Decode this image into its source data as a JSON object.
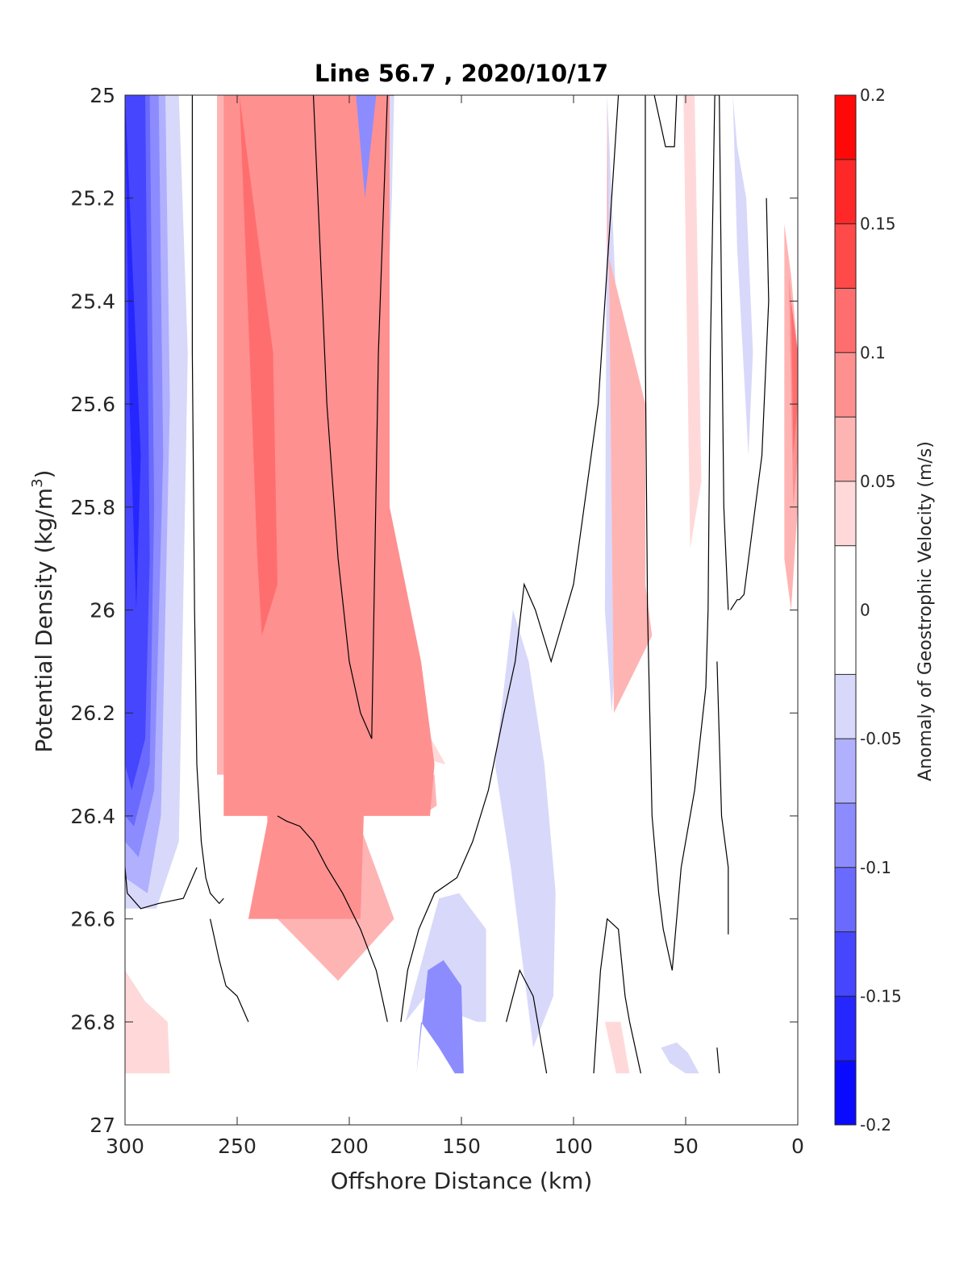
{
  "chart_data": {
    "type": "contour",
    "title": "Line 56.7 , 2020/10/17",
    "xlabel": "Offshore Distance (km)",
    "ylabel_main": "Potential Density (kg/m",
    "ylabel_sup": "3",
    "ylabel_close": ")",
    "x_reversed": true,
    "y_reversed": true,
    "xlim": [
      0,
      300
    ],
    "ylim": [
      25,
      27
    ],
    "x_ticks": [
      300,
      250,
      200,
      150,
      100,
      50,
      0
    ],
    "x_tick_labels": [
      "300",
      "250",
      "200",
      "150",
      "100",
      "50",
      "0"
    ],
    "y_ticks": [
      25,
      25.2,
      25.4,
      25.6,
      25.8,
      26,
      26.2,
      26.4,
      26.6,
      26.8,
      27
    ],
    "y_tick_labels": [
      "25",
      "25.2",
      "25.4",
      "25.6",
      "25.8",
      "26",
      "26.2",
      "26.4",
      "26.6",
      "26.8",
      "27"
    ],
    "colorbar": {
      "label": "Anomaly of Geostrophic Velocity (m/s)",
      "range": [
        -0.2,
        0.2
      ],
      "levels": [
        -0.2,
        -0.175,
        -0.15,
        -0.125,
        -0.1,
        -0.075,
        -0.05,
        -0.025,
        0.025,
        0.05,
        0.075,
        0.1,
        0.125,
        0.15,
        0.175,
        0.2
      ],
      "band_colors": [
        "#0a0aff",
        "#2626ff",
        "#4646ff",
        "#6a6aff",
        "#8c8cff",
        "#b0b0ff",
        "#d8d8fa",
        "#ffffff",
        "#ffd9d9",
        "#ffb4b4",
        "#ff9090",
        "#ff6e6e",
        "#ff4a4a",
        "#ff2828",
        "#ff0808"
      ],
      "ticks": [
        -0.2,
        -0.15,
        -0.1,
        -0.05,
        0,
        0.05,
        0.1,
        0.15,
        0.2
      ],
      "tick_labels": [
        "-0.2",
        "-0.15",
        "-0.1",
        "-0.05",
        "0",
        "0.05",
        "0.1",
        "0.15",
        "0.2"
      ]
    },
    "regions": [
      {
        "level": 0.05,
        "x": [
          259,
          259,
          162,
          161,
          168,
          175,
          186,
          186
        ],
        "y": [
          25,
          26.32,
          26.32,
          26.38,
          26.4,
          26.3,
          26.0,
          25
        ]
      },
      {
        "level": 0.075,
        "x": [
          256,
          256,
          164,
          162,
          168,
          182,
          182
        ],
        "y": [
          25,
          26.4,
          26.4,
          26.3,
          26.1,
          25.8,
          25
        ]
      },
      {
        "level": 0.05,
        "x": [
          85,
          85,
          68,
          68,
          65,
          82
        ],
        "y": [
          25,
          25.3,
          25.6,
          25.95,
          26.05,
          26.2
        ]
      },
      {
        "level": 0.05,
        "x": [
          222,
          235,
          238,
          232,
          205,
          180
        ],
        "y": [
          26.1,
          26.2,
          26.35,
          26.6,
          26.72,
          26.6
        ]
      },
      {
        "level": 0.075,
        "x": [
          245,
          227,
          219,
          209,
          193,
          195
        ],
        "y": [
          26.6,
          26.2,
          26.28,
          26.28,
          26.32,
          26.6
        ]
      },
      {
        "level": 0.075,
        "x": [
          235,
          233,
          227,
          219,
          203,
          193
        ],
        "y": [
          26.05,
          26.3,
          26.32,
          26.28,
          26.08,
          25.82
        ]
      },
      {
        "level": 0.1,
        "x": [
          249,
          244,
          241,
          239,
          232,
          234
        ],
        "y": [
          25.0,
          25.55,
          25.9,
          26.05,
          25.95,
          25.5
        ]
      },
      {
        "level": 0.025,
        "x": [
          237,
          210,
          200,
          189,
          175,
          170,
          157
        ],
        "y": [
          26.2,
          26.1,
          26.0,
          25.9,
          26.0,
          26.2,
          26.3
        ]
      },
      {
        "level": 0.05,
        "x": [
          6,
          3,
          0,
          0,
          3,
          6
        ],
        "y": [
          25.25,
          25.35,
          25.5,
          25.8,
          26.0,
          25.9
        ]
      },
      {
        "level": 0.075,
        "x": [
          4,
          2,
          0,
          0,
          2
        ],
        "y": [
          25.35,
          25.45,
          25.5,
          25.7,
          25.8
        ]
      },
      {
        "level": 0.1,
        "x": [
          3,
          0,
          0,
          2
        ],
        "y": [
          25.4,
          25.5,
          25.6,
          25.7
        ]
      },
      {
        "level": 0.025,
        "x": [
          300,
          291,
          281,
          280,
          300
        ],
        "y": [
          26.7,
          26.76,
          26.8,
          26.9,
          26.9
        ]
      },
      {
        "level": 0.025,
        "x": [
          86,
          79,
          75,
          81
        ],
        "y": [
          26.8,
          26.8,
          26.9,
          26.9
        ]
      },
      {
        "level": 0.025,
        "x": [
          51,
          46,
          43,
          48
        ],
        "y": [
          25.0,
          25.0,
          25.75,
          25.88
        ]
      },
      {
        "level": 0.025,
        "x": [
          238,
          225,
          218
        ],
        "y": [
          25.0,
          25.0,
          26.1
        ]
      }
    ],
    "cold_regions": [
      {
        "level": -0.175,
        "x": [
          300,
          298,
          295,
          293
        ],
        "y": [
          25.0,
          25.6,
          26.0,
          25.7
        ]
      },
      {
        "level": -0.15,
        "x": [
          300,
          300,
          297,
          291,
          289,
          291
        ],
        "y": [
          25.0,
          26.3,
          26.35,
          26.25,
          25.9,
          25.0
        ]
      },
      {
        "level": -0.125,
        "x": [
          300,
          300,
          296,
          289,
          287,
          289
        ],
        "y": [
          25.0,
          26.4,
          26.42,
          26.3,
          25.8,
          25.0
        ]
      },
      {
        "level": -0.1,
        "x": [
          300,
          300,
          294,
          287,
          283,
          285
        ],
        "y": [
          25.0,
          26.45,
          26.48,
          26.35,
          25.7,
          25.0
        ]
      },
      {
        "level": -0.075,
        "x": [
          300,
          300,
          290,
          284,
          280,
          282
        ],
        "y": [
          25.0,
          26.52,
          26.55,
          26.4,
          25.6,
          25.0
        ]
      },
      {
        "level": -0.05,
        "x": [
          300,
          300,
          286,
          276,
          272,
          276
        ],
        "y": [
          25.0,
          26.58,
          26.58,
          26.45,
          25.5,
          25.0
        ]
      },
      {
        "level": -0.1,
        "x": [
          197,
          193,
          188
        ],
        "y": [
          25.0,
          25.2,
          25.0
        ]
      },
      {
        "level": -0.075,
        "x": [
          204,
          196,
          189,
          183
        ],
        "y": [
          25.0,
          25.7,
          25.9,
          25.0
        ]
      },
      {
        "level": -0.05,
        "x": [
          207,
          197,
          188,
          181,
          180
        ],
        "y": [
          25.0,
          25.85,
          26.0,
          25.2,
          25.0
        ]
      },
      {
        "level": -0.025,
        "x": [
          211,
          199,
          188,
          177,
          178
        ],
        "y": [
          25.0,
          26.05,
          26.15,
          25.4,
          25.0
        ]
      },
      {
        "level": -0.05,
        "x": [
          135,
          128,
          118,
          109,
          108,
          113,
          120,
          127
        ],
        "y": [
          26.3,
          26.5,
          26.85,
          26.75,
          26.55,
          26.3,
          26.1,
          26.0
        ]
      },
      {
        "level": -0.05,
        "x": [
          160,
          151,
          139,
          139,
          143,
          155,
          166,
          175
        ],
        "y": [
          26.56,
          26.55,
          26.62,
          26.8,
          26.8,
          26.78,
          26.75,
          26.8
        ]
      },
      {
        "level": -0.1,
        "x": [
          165,
          158,
          150,
          149,
          153,
          160,
          168,
          170
        ],
        "y": [
          26.7,
          26.68,
          26.73,
          26.9,
          26.9,
          26.85,
          26.8,
          26.9
        ]
      },
      {
        "level": -0.05,
        "x": [
          85,
          83,
          81,
          78,
          80,
          83,
          86
        ],
        "y": [
          25.0,
          25.2,
          25.4,
          25.7,
          26.0,
          26.2,
          26.0
        ]
      },
      {
        "level": -0.05,
        "x": [
          29,
          27,
          23,
          20,
          22,
          27
        ],
        "y": [
          25.0,
          25.1,
          25.2,
          25.5,
          25.7,
          25.3
        ]
      },
      {
        "level": -0.05,
        "x": [
          61,
          57,
          50,
          44,
          49,
          54
        ],
        "y": [
          26.85,
          26.88,
          26.9,
          26.9,
          26.86,
          26.84
        ]
      }
    ],
    "zero_contours": [
      {
        "x": [
          270,
          270,
          269,
          268,
          266,
          264,
          262,
          260,
          258,
          256
        ],
        "y": [
          25.0,
          25.5,
          26.0,
          26.3,
          26.45,
          26.52,
          26.55,
          26.56,
          26.57,
          26.56
        ]
      },
      {
        "x": [
          300,
          299,
          293,
          285,
          274,
          268
        ],
        "y": [
          26.5,
          26.55,
          26.58,
          26.57,
          26.56,
          26.5
        ]
      },
      {
        "x": [
          262,
          262,
          258,
          255,
          250,
          245
        ],
        "y": [
          26.6,
          26.6,
          26.68,
          26.73,
          26.75,
          26.8
        ]
      },
      {
        "x": [
          232,
          228,
          222,
          216,
          210,
          203,
          195,
          188,
          183
        ],
        "y": [
          26.4,
          26.41,
          26.42,
          26.45,
          26.5,
          26.55,
          26.62,
          26.7,
          26.8
        ]
      },
      {
        "x": [
          216,
          213,
          210,
          205,
          200,
          195,
          190,
          187,
          183,
          180
        ],
        "y": [
          25.0,
          25.3,
          25.6,
          25.9,
          26.1,
          26.2,
          26.25,
          25.5,
          25.0,
          25.0
        ]
      },
      {
        "x": [
          177,
          174,
          169,
          162,
          152,
          145,
          138,
          131,
          126,
          122,
          117,
          110,
          100,
          89,
          80
        ],
        "y": [
          26.8,
          26.7,
          26.62,
          26.55,
          26.52,
          26.45,
          26.35,
          26.2,
          26.1,
          25.95,
          26.0,
          26.1,
          25.95,
          25.6,
          25.0
        ]
      },
      {
        "x": [
          130,
          124,
          118,
          112
        ],
        "y": [
          26.8,
          26.7,
          26.75,
          26.9
        ]
      },
      {
        "x": [
          91,
          88,
          85,
          80,
          77,
          75,
          70
        ],
        "y": [
          26.9,
          26.7,
          26.6,
          26.62,
          26.75,
          26.8,
          26.9
        ]
      },
      {
        "x": [
          68,
          68,
          67,
          65,
          62,
          60,
          56,
          52
        ],
        "y": [
          25.0,
          25.5,
          26.0,
          26.4,
          26.55,
          26.62,
          26.7,
          26.5
        ]
      },
      {
        "x": [
          64,
          59,
          55,
          54
        ],
        "y": [
          25.0,
          25.1,
          25.1,
          25.0
        ]
      },
      {
        "x": [
          52,
          46,
          41,
          40,
          39,
          37,
          36,
          35
        ],
        "y": [
          26.5,
          26.35,
          26.15,
          26.0,
          25.5,
          25.0,
          25.0,
          25.0
        ]
      },
      {
        "x": [
          35,
          34,
          33,
          31
        ],
        "y": [
          25.0,
          25.4,
          25.8,
          26.0
        ]
      },
      {
        "x": [
          36,
          34,
          31,
          31
        ],
        "y": [
          26.1,
          26.4,
          26.5,
          26.63
        ]
      },
      {
        "x": [
          30,
          27,
          26,
          24,
          16,
          13,
          14
        ],
        "y": [
          26.0,
          25.98,
          25.98,
          25.97,
          25.7,
          25.4,
          25.2
        ]
      },
      {
        "x": [
          36,
          35
        ],
        "y": [
          26.85,
          26.9
        ]
      }
    ]
  }
}
